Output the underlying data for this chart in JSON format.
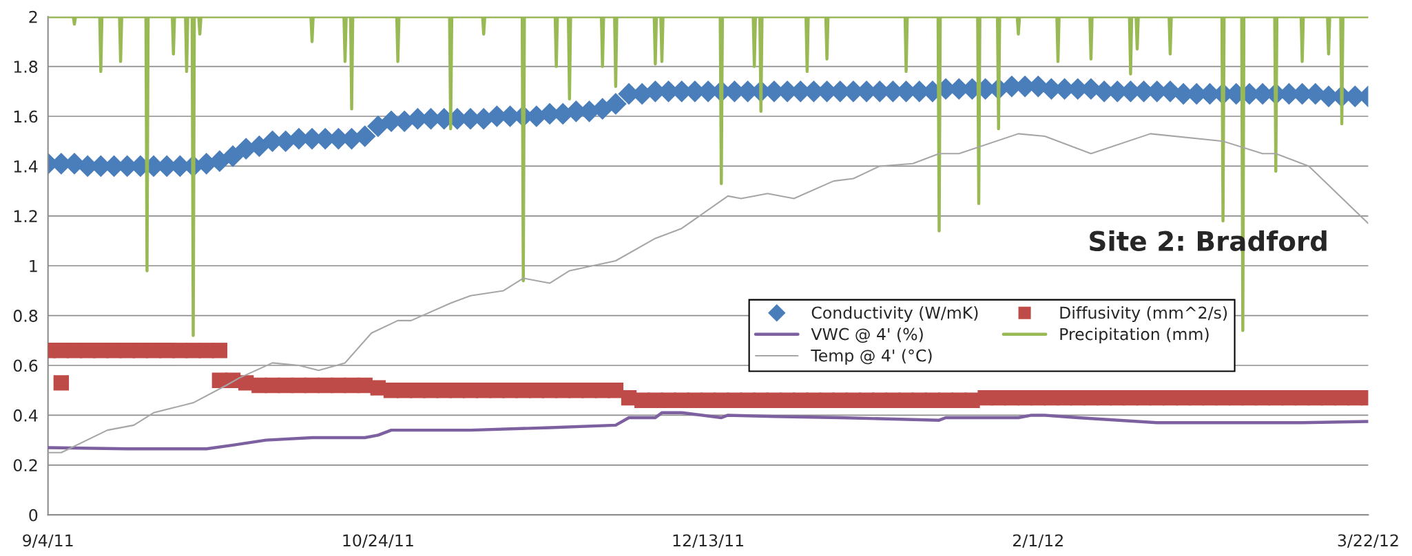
{
  "chart_data": {
    "type": "scatter",
    "title": "Site 2: Bradford",
    "x": [
      "2011-09-04",
      "2011-09-06",
      "2011-09-08",
      "2011-09-10",
      "2011-09-12",
      "2011-09-14",
      "2011-09-16",
      "2011-09-18",
      "2011-09-20",
      "2011-09-22",
      "2011-09-24",
      "2011-09-26",
      "2011-09-28",
      "2011-09-30",
      "2011-10-02",
      "2011-10-04",
      "2011-10-06",
      "2011-10-08",
      "2011-10-10",
      "2011-10-12",
      "2011-10-14",
      "2011-10-16",
      "2011-10-18",
      "2011-10-20",
      "2011-10-22",
      "2011-10-24",
      "2011-10-26",
      "2011-10-28",
      "2011-10-30",
      "2011-11-01",
      "2011-11-03",
      "2011-11-05",
      "2011-11-07",
      "2011-11-09",
      "2011-11-11",
      "2011-11-13",
      "2011-11-15",
      "2011-11-17",
      "2011-11-19",
      "2011-11-21",
      "2011-11-23",
      "2011-11-25",
      "2011-11-27",
      "2011-11-29",
      "2011-12-01",
      "2011-12-03",
      "2011-12-05",
      "2011-12-07",
      "2011-12-09",
      "2011-12-11",
      "2011-12-13",
      "2011-12-15",
      "2011-12-17",
      "2011-12-19",
      "2011-12-21",
      "2011-12-23",
      "2011-12-25",
      "2011-12-27",
      "2011-12-29",
      "2011-12-31",
      "2012-01-02",
      "2012-01-04",
      "2012-01-06",
      "2012-01-08",
      "2012-01-10",
      "2012-01-12",
      "2012-01-14",
      "2012-01-16",
      "2012-01-18",
      "2012-01-20",
      "2012-01-22",
      "2012-01-24",
      "2012-01-26",
      "2012-01-28",
      "2012-01-30",
      "2012-02-01",
      "2012-02-03",
      "2012-02-05",
      "2012-02-07",
      "2012-02-09",
      "2012-02-11",
      "2012-02-13",
      "2012-02-15",
      "2012-02-17",
      "2012-02-19",
      "2012-02-21",
      "2012-02-23",
      "2012-02-25",
      "2012-02-27",
      "2012-02-29",
      "2012-03-02",
      "2012-03-04",
      "2012-03-06",
      "2012-03-08",
      "2012-03-10",
      "2012-03-12",
      "2012-03-14",
      "2012-03-16",
      "2012-03-18",
      "2012-03-20",
      "2012-03-22"
    ],
    "series": [
      {
        "name": "Conductivity (W/mK)",
        "marker": "diamond",
        "color": "#4a7ebb",
        "values": [
          1.41,
          1.41,
          1.41,
          1.4,
          1.4,
          1.4,
          1.4,
          1.4,
          1.4,
          1.4,
          1.4,
          1.4,
          1.41,
          1.42,
          1.44,
          1.47,
          1.48,
          1.5,
          1.5,
          1.51,
          1.51,
          1.51,
          1.51,
          1.51,
          1.52,
          1.56,
          1.58,
          1.58,
          1.59,
          1.59,
          1.59,
          1.59,
          1.59,
          1.59,
          1.6,
          1.6,
          1.6,
          1.6,
          1.61,
          1.61,
          1.62,
          1.62,
          1.63,
          1.65,
          1.69,
          1.69,
          1.7,
          1.7,
          1.7,
          1.7,
          1.7,
          1.7,
          1.7,
          1.7,
          1.7,
          1.7,
          1.7,
          1.7,
          1.7,
          1.7,
          1.7,
          1.7,
          1.7,
          1.7,
          1.7,
          1.7,
          1.7,
          1.7,
          1.71,
          1.71,
          1.71,
          1.71,
          1.71,
          1.72,
          1.72,
          1.72,
          1.71,
          1.71,
          1.71,
          1.71,
          1.7,
          1.7,
          1.7,
          1.7,
          1.7,
          1.7,
          1.69,
          1.69,
          1.69,
          1.69,
          1.69,
          1.69,
          1.69,
          1.69,
          1.69,
          1.69,
          1.69,
          1.68,
          1.68,
          1.68,
          1.68
        ]
      },
      {
        "name": "Diffusivity (mm^2/s)",
        "marker": "square",
        "color": "#be4b48",
        "x": [
          "2011-09-04",
          "2011-09-06",
          "2011-09-08",
          "2011-09-10",
          "2011-09-12",
          "2011-09-14",
          "2011-09-16",
          "2011-09-18",
          "2011-09-20",
          "2011-09-22",
          "2011-09-24",
          "2011-09-26",
          "2011-09-28",
          "2011-09-30",
          "2011-09-06",
          "2011-09-30",
          "2011-10-02",
          "2011-10-04",
          "2011-10-06",
          "2011-10-08",
          "2011-10-10",
          "2011-10-12",
          "2011-10-14",
          "2011-10-16",
          "2011-10-18",
          "2011-10-20",
          "2011-10-22",
          "2011-10-24",
          "2011-10-26",
          "2011-10-28",
          "2011-10-30",
          "2011-11-01",
          "2011-11-03",
          "2011-11-05",
          "2011-11-07",
          "2011-11-09",
          "2011-11-11",
          "2011-11-13",
          "2011-11-15",
          "2011-11-17",
          "2011-11-19",
          "2011-11-21",
          "2011-11-23",
          "2011-11-25",
          "2011-11-27",
          "2011-11-29",
          "2011-12-01",
          "2011-12-03",
          "2011-12-05",
          "2011-12-07",
          "2011-12-09",
          "2011-12-11",
          "2011-12-13",
          "2011-12-15",
          "2011-12-17",
          "2011-12-19",
          "2011-12-21",
          "2011-12-23",
          "2011-12-25",
          "2011-12-27",
          "2011-12-29",
          "2011-12-31",
          "2012-01-02",
          "2012-01-04",
          "2012-01-06",
          "2012-01-08",
          "2012-01-10",
          "2012-01-12",
          "2012-01-14",
          "2012-01-16",
          "2012-01-18",
          "2012-01-20",
          "2012-01-22",
          "2012-01-24",
          "2012-01-26",
          "2012-01-28",
          "2012-01-30",
          "2012-02-01",
          "2012-02-03",
          "2012-02-05",
          "2012-02-07",
          "2012-02-09",
          "2012-02-11",
          "2012-02-13",
          "2012-02-15",
          "2012-02-17",
          "2012-02-19",
          "2012-02-21",
          "2012-02-23",
          "2012-02-25",
          "2012-02-27",
          "2012-02-29",
          "2012-03-02",
          "2012-03-04",
          "2012-03-06",
          "2012-03-08",
          "2012-03-10",
          "2012-03-12",
          "2012-03-14",
          "2012-03-16",
          "2012-03-18",
          "2012-03-20",
          "2012-03-22"
        ],
        "values": [
          0.66,
          0.66,
          0.66,
          0.66,
          0.66,
          0.66,
          0.66,
          0.66,
          0.66,
          0.66,
          0.66,
          0.66,
          0.66,
          0.66,
          0.53,
          0.54,
          0.54,
          0.53,
          0.52,
          0.52,
          0.52,
          0.52,
          0.52,
          0.52,
          0.52,
          0.52,
          0.52,
          0.51,
          0.5,
          0.5,
          0.5,
          0.5,
          0.5,
          0.5,
          0.5,
          0.5,
          0.5,
          0.5,
          0.5,
          0.5,
          0.5,
          0.5,
          0.5,
          0.5,
          0.5,
          0.5,
          0.47,
          0.46,
          0.46,
          0.46,
          0.46,
          0.46,
          0.46,
          0.46,
          0.46,
          0.46,
          0.46,
          0.46,
          0.46,
          0.46,
          0.46,
          0.46,
          0.46,
          0.46,
          0.46,
          0.46,
          0.46,
          0.46,
          0.46,
          0.46,
          0.46,
          0.46,
          0.46,
          0.47,
          0.47,
          0.47,
          0.47,
          0.47,
          0.47,
          0.47,
          0.47,
          0.47,
          0.47,
          0.47,
          0.47,
          0.47,
          0.47,
          0.47,
          0.47,
          0.47,
          0.47,
          0.47,
          0.47,
          0.47,
          0.47,
          0.47,
          0.47,
          0.47,
          0.47,
          0.47,
          0.47,
          0.47,
          0.47
        ]
      },
      {
        "name": "VWC @ 4' (%)",
        "type": "line",
        "color": "#7d60a0",
        "x": [
          "2011-09-04",
          "2011-09-16",
          "2011-09-28",
          "2011-10-02",
          "2011-10-07",
          "2011-10-14",
          "2011-10-22",
          "2011-10-24",
          "2011-10-26",
          "2011-11-07",
          "2011-11-19",
          "2011-11-29",
          "2011-12-01",
          "2011-12-05",
          "2011-12-06",
          "2011-12-09",
          "2011-12-15",
          "2011-12-16",
          "2011-12-23",
          "2012-01-02",
          "2012-01-17",
          "2012-01-18",
          "2012-01-29",
          "2012-01-31",
          "2012-02-02",
          "2012-02-07",
          "2012-02-19",
          "2012-03-02",
          "2012-03-12",
          "2012-03-22"
        ],
        "values": [
          0.27,
          0.265,
          0.265,
          0.28,
          0.3,
          0.31,
          0.31,
          0.32,
          0.34,
          0.34,
          0.35,
          0.36,
          0.39,
          0.39,
          0.41,
          0.41,
          0.39,
          0.4,
          0.395,
          0.39,
          0.38,
          0.39,
          0.39,
          0.4,
          0.4,
          0.39,
          0.37,
          0.37,
          0.37,
          0.375
        ]
      },
      {
        "name": "Precipitation (mm)",
        "type": "line",
        "color": "#98b954",
        "x": [
          "2011-09-04",
          "2011-09-07T20:00",
          "2011-09-08",
          "2011-09-08T04:00",
          "2011-09-11T20:00",
          "2011-09-12",
          "2011-09-12T04:00",
          "2011-09-14T20:00",
          "2011-09-15",
          "2011-09-15T04:00",
          "2011-09-18T20:00",
          "2011-09-19",
          "2011-09-19T04:00",
          "2011-09-22T20:00",
          "2011-09-23",
          "2011-09-23T04:00",
          "2011-09-24T20:00",
          "2011-09-25",
          "2011-09-25T04:00",
          "2011-09-25T20:00",
          "2011-09-26",
          "2011-09-26T04:00",
          "2011-09-26T20:00",
          "2011-09-27",
          "2011-09-27T04:00",
          "2011-10-13T20:00",
          "2011-10-14",
          "2011-10-14T04:00",
          "2011-10-18T20:00",
          "2011-10-19",
          "2011-10-19T04:00",
          "2011-10-19T20:00",
          "2011-10-20",
          "2011-10-20T04:00",
          "2011-10-26T20:00",
          "2011-10-27",
          "2011-10-27T04:00",
          "2011-11-03T20:00",
          "2011-11-04",
          "2011-11-04T04:00",
          "2011-11-08T20:00",
          "2011-11-09",
          "2011-11-09T04:00",
          "2011-11-14T20:00",
          "2011-11-15",
          "2011-11-15T04:00",
          "2011-11-19T20:00",
          "2011-11-20",
          "2011-11-20T04:00",
          "2011-11-21T20:00",
          "2011-11-22",
          "2011-11-22T04:00",
          "2011-11-26T20:00",
          "2011-11-27",
          "2011-11-27T04:00",
          "2011-11-28T20:00",
          "2011-11-29",
          "2011-11-29T04:00",
          "2011-12-04T20:00",
          "2011-12-05",
          "2011-12-05T04:00",
          "2011-12-05T20:00",
          "2011-12-06",
          "2011-12-06T04:00",
          "2011-12-14T20:00",
          "2011-12-15",
          "2011-12-15T04:00",
          "2011-12-19T20:00",
          "2011-12-20",
          "2011-12-20T04:00",
          "2011-12-20T20:00",
          "2011-12-21",
          "2011-12-21T04:00",
          "2011-12-27T20:00",
          "2011-12-28",
          "2011-12-28T04:00",
          "2011-12-30T20:00",
          "2011-12-31",
          "2011-12-31T04:00",
          "2012-01-11T20:00",
          "2012-01-12",
          "2012-01-12T04:00",
          "2012-01-16T20:00",
          "2012-01-17",
          "2012-01-17T04:00",
          "2012-01-22T20:00",
          "2012-01-23",
          "2012-01-23T04:00",
          "2012-01-25T20:00",
          "2012-01-26",
          "2012-01-26T04:00",
          "2012-01-28T20:00",
          "2012-01-29",
          "2012-01-29T04:00",
          "2012-02-03T20:00",
          "2012-02-04",
          "2012-02-04T04:00",
          "2012-02-08T20:00",
          "2012-02-09",
          "2012-02-09T04:00",
          "2012-02-14T20:00",
          "2012-02-15",
          "2012-02-15T04:00",
          "2012-02-15T20:00",
          "2012-02-16",
          "2012-02-16T04:00",
          "2012-02-20T20:00",
          "2012-02-21",
          "2012-02-21T04:00",
          "2012-02-28T20:00",
          "2012-02-29",
          "2012-02-29T04:00",
          "2012-03-02T20:00",
          "2012-03-03",
          "2012-03-03T04:00",
          "2012-03-07T20:00",
          "2012-03-08",
          "2012-03-08T04:00",
          "2012-03-11T20:00",
          "2012-03-12",
          "2012-03-12T04:00",
          "2012-03-15T20:00",
          "2012-03-16",
          "2012-03-16T04:00",
          "2012-03-17T20:00",
          "2012-03-18",
          "2012-03-18T04:00",
          "2012-03-22"
        ],
        "values": [
          2,
          2,
          1.97,
          2,
          2,
          1.78,
          2,
          2,
          1.82,
          2,
          2,
          0.98,
          2,
          2,
          1.85,
          2,
          2,
          1.78,
          2,
          2,
          0.72,
          2,
          2,
          1.93,
          2,
          2,
          1.9,
          2,
          2,
          1.82,
          2,
          2,
          1.63,
          2,
          2,
          1.82,
          2,
          2,
          1.55,
          2,
          2,
          1.93,
          2,
          2,
          0.94,
          2,
          2,
          1.8,
          2,
          2,
          1.67,
          2,
          2,
          1.8,
          2,
          2,
          1.72,
          2,
          2,
          1.81,
          2,
          2,
          1.82,
          2,
          2,
          1.33,
          2,
          2,
          1.8,
          2,
          2,
          1.62,
          2,
          2,
          1.78,
          2,
          2,
          1.83,
          2,
          2,
          1.78,
          2,
          2,
          1.14,
          2,
          2,
          1.25,
          2,
          2,
          1.55,
          2,
          2,
          1.93,
          2,
          2,
          1.82,
          2,
          2,
          1.83,
          2,
          2,
          1.77,
          2,
          2,
          1.87,
          2,
          2,
          1.85,
          2,
          2,
          1.18,
          2,
          2,
          0.74,
          2,
          2,
          1.38,
          2,
          2,
          1.82,
          2,
          2,
          1.85,
          2,
          2,
          1.57,
          2,
          2
        ]
      },
      {
        "name": "Temp @ 4' (°C)",
        "type": "line",
        "color": "#a6a6a6",
        "x": [
          "2011-09-04",
          "2011-09-06",
          "2011-09-13",
          "2011-09-17",
          "2011-09-20",
          "2011-09-23",
          "2011-09-26",
          "2011-10-01",
          "2011-10-03",
          "2011-10-08",
          "2011-10-12",
          "2011-10-15",
          "2011-10-19",
          "2011-10-23",
          "2011-10-27",
          "2011-10-29",
          "2011-11-04",
          "2011-11-07",
          "2011-11-12",
          "2011-11-15",
          "2011-11-19",
          "2011-11-22",
          "2011-11-29",
          "2011-12-05",
          "2011-12-09",
          "2011-12-16",
          "2011-12-18",
          "2011-12-22",
          "2011-12-26",
          "2012-01-01",
          "2012-01-04",
          "2012-01-08",
          "2012-01-13",
          "2012-01-17",
          "2012-01-20",
          "2012-01-29",
          "2012-02-02",
          "2012-02-09",
          "2012-02-18",
          "2012-02-29",
          "2012-03-06",
          "2012-03-08",
          "2012-03-13",
          "2012-03-22"
        ],
        "values": [
          0.25,
          0.25,
          0.34,
          0.36,
          0.41,
          0.43,
          0.45,
          0.52,
          0.55,
          0.61,
          0.6,
          0.58,
          0.61,
          0.73,
          0.78,
          0.78,
          0.85,
          0.88,
          0.9,
          0.95,
          0.93,
          0.98,
          1.02,
          1.11,
          1.15,
          1.28,
          1.27,
          1.29,
          1.27,
          1.34,
          1.35,
          1.4,
          1.41,
          1.45,
          1.45,
          1.53,
          1.52,
          1.45,
          1.53,
          1.5,
          1.45,
          1.45,
          1.4,
          1.17
        ]
      }
    ],
    "xlim": [
      "2011-09-04",
      "2012-03-22"
    ],
    "xticks": [
      {
        "value": "2011-09-04",
        "label": "9/4/11"
      },
      {
        "value": "2011-10-24",
        "label": "10/24/11"
      },
      {
        "value": "2011-12-13",
        "label": "12/13/11"
      },
      {
        "value": "2012-02-01",
        "label": "2/1/12"
      },
      {
        "value": "2012-03-22",
        "label": "3/22/12"
      }
    ],
    "ylim": [
      0,
      2
    ],
    "yticks": [
      0,
      0.2,
      0.4,
      0.6,
      0.8,
      1,
      1.2,
      1.4,
      1.6,
      1.8,
      2
    ],
    "grid": "y",
    "legend": "center right"
  }
}
